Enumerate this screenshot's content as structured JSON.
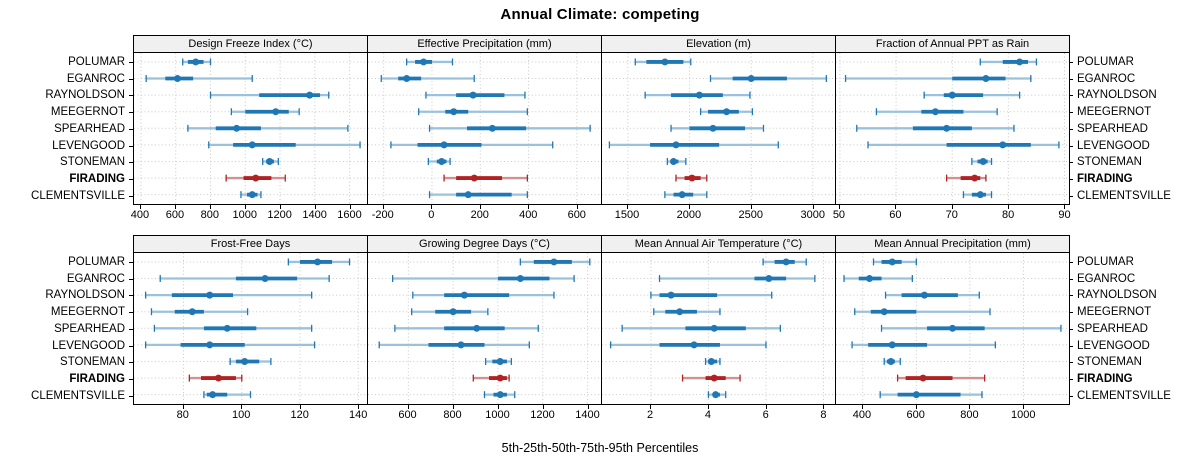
{
  "title": "Annual Climate: competing",
  "caption": "5th-25th-50th-75th-95th Percentiles",
  "percentile_scheme": [
    "5th",
    "25th",
    "50th",
    "75th",
    "95th"
  ],
  "sites": [
    "POLUMAR",
    "EGANROC",
    "RAYNOLDSON",
    "MEEGERNOT",
    "SPEARHEAD",
    "LEVENGOOD",
    "STONEMAN",
    "FIRADING",
    "CLEMENTSVILLE"
  ],
  "highlight_site": "FIRADING",
  "colors": {
    "series": "#1F77B4",
    "series_light": "#9AC2DD",
    "highlight": "#B22222",
    "highlight_light": "#D49090",
    "grid": "#C8C8C8",
    "strip_bg": "#F0F0F0",
    "border": "#000000"
  },
  "chart_data": {
    "type": "dotplot-percentile",
    "layout": {
      "rows": 2,
      "cols": 4,
      "grid": "dotted",
      "legend_position": "none",
      "axis_position": "below-each-row"
    },
    "categories": [
      "POLUMAR",
      "EGANROC",
      "RAYNOLDSON",
      "MEEGERNOT",
      "SPEARHEAD",
      "LEVENGOOD",
      "STONEMAN",
      "FIRADING",
      "CLEMENTSVILLE"
    ],
    "panels": [
      {
        "title": "Design Freeze Index (°C)",
        "ticks": [
          400,
          600,
          800,
          1000,
          1200,
          1400,
          1600
        ],
        "domain": [
          360,
          1700
        ],
        "values": [
          [
            640,
            670,
            715,
            760,
            800
          ],
          [
            430,
            540,
            610,
            700,
            1040
          ],
          [
            800,
            1080,
            1370,
            1430,
            1480
          ],
          [
            920,
            1000,
            1175,
            1250,
            1310
          ],
          [
            670,
            830,
            950,
            1090,
            1590
          ],
          [
            790,
            930,
            1040,
            1290,
            1660
          ],
          [
            1100,
            1120,
            1140,
            1165,
            1190
          ],
          [
            890,
            990,
            1060,
            1150,
            1230
          ],
          [
            975,
            1010,
            1040,
            1070,
            1090
          ]
        ]
      },
      {
        "title": "Effective Precipitation (mm)",
        "ticks": [
          -200,
          0,
          200,
          400,
          600
        ],
        "domain": [
          -265,
          700
        ],
        "values": [
          [
            -105,
            -70,
            -35,
            0,
            85
          ],
          [
            -210,
            -140,
            -105,
            -45,
            175
          ],
          [
            -25,
            100,
            170,
            300,
            385
          ],
          [
            -55,
            55,
            90,
            150,
            395
          ],
          [
            -10,
            145,
            250,
            390,
            655
          ],
          [
            -170,
            -60,
            50,
            205,
            500
          ],
          [
            -15,
            20,
            40,
            60,
            75
          ],
          [
            50,
            100,
            175,
            290,
            395
          ],
          [
            -10,
            100,
            150,
            330,
            395
          ]
        ]
      },
      {
        "title": "Elevation (m)",
        "ticks": [
          1500,
          2000,
          2500,
          3000
        ],
        "domain": [
          1290,
          3180
        ],
        "values": [
          [
            1560,
            1650,
            1800,
            1950,
            2010
          ],
          [
            2170,
            2350,
            2500,
            2790,
            3110
          ],
          [
            1640,
            1850,
            2080,
            2270,
            2490
          ],
          [
            2090,
            2150,
            2300,
            2400,
            2510
          ],
          [
            1850,
            2000,
            2190,
            2450,
            2600
          ],
          [
            1350,
            1680,
            1890,
            2240,
            2720
          ],
          [
            1820,
            1845,
            1870,
            1910,
            1970
          ],
          [
            1890,
            1960,
            2020,
            2090,
            2140
          ],
          [
            1800,
            1870,
            1940,
            2030,
            2140
          ]
        ]
      },
      {
        "title": "Fraction of Annual PPT as Rain",
        "ticks": [
          50,
          60,
          70,
          80,
          90
        ],
        "domain": [
          49.3,
          90.8
        ],
        "values": [
          [
            75,
            79,
            82,
            83.5,
            85
          ],
          [
            51,
            70,
            76,
            79.5,
            84
          ],
          [
            65,
            68.5,
            70,
            75.5,
            82
          ],
          [
            56.5,
            64.5,
            67,
            72,
            78
          ],
          [
            53,
            63,
            69,
            73.5,
            81
          ],
          [
            55,
            69,
            79,
            84,
            89
          ],
          [
            73.5,
            74.5,
            75.5,
            76.3,
            77
          ],
          [
            69,
            71.5,
            74,
            75,
            76
          ],
          [
            72,
            73.5,
            75,
            76,
            77
          ]
        ]
      },
      {
        "title": "Frost-Free Days",
        "ticks": [
          80,
          100,
          120,
          140
        ],
        "domain": [
          63,
          143
        ],
        "values": [
          [
            116,
            120,
            126,
            131,
            137
          ],
          [
            72,
            98,
            108,
            119,
            130
          ],
          [
            67,
            76,
            89,
            97,
            124
          ],
          [
            69,
            77,
            83,
            87,
            102
          ],
          [
            70,
            87,
            95,
            105,
            124
          ],
          [
            67,
            79,
            89,
            101,
            125
          ],
          [
            96,
            98,
            101,
            106,
            110
          ],
          [
            82,
            86,
            92,
            98,
            100
          ],
          [
            87,
            88,
            90,
            95,
            103
          ]
        ]
      },
      {
        "title": "Growing Degree Days (°C)",
        "ticks": [
          600,
          800,
          1000,
          1200,
          1400
        ],
        "domain": [
          420,
          1460
        ],
        "values": [
          [
            1100,
            1160,
            1250,
            1330,
            1410
          ],
          [
            530,
            1000,
            1100,
            1230,
            1340
          ],
          [
            620,
            760,
            850,
            1050,
            1250
          ],
          [
            615,
            720,
            800,
            880,
            955
          ],
          [
            540,
            760,
            905,
            1030,
            1180
          ],
          [
            470,
            690,
            835,
            940,
            1140
          ],
          [
            945,
            975,
            1010,
            1040,
            1060
          ],
          [
            890,
            960,
            1010,
            1040,
            1050
          ],
          [
            940,
            980,
            1010,
            1040,
            1075
          ]
        ]
      },
      {
        "title": "Mean Annual Air Temperature (°C)",
        "ticks": [
          2,
          4,
          6,
          8
        ],
        "domain": [
          0.3,
          8.4
        ],
        "values": [
          [
            5.9,
            6.3,
            6.7,
            7.0,
            7.4
          ],
          [
            2.3,
            5.6,
            6.1,
            6.7,
            7.7
          ],
          [
            2.0,
            2.3,
            2.7,
            4.3,
            6.2
          ],
          [
            2.1,
            2.5,
            3.0,
            3.6,
            4.4
          ],
          [
            1.0,
            3.2,
            4.2,
            5.3,
            6.5
          ],
          [
            0.6,
            2.3,
            3.5,
            4.4,
            6.0
          ],
          [
            3.9,
            4.0,
            4.1,
            4.3,
            4.4
          ],
          [
            3.1,
            3.9,
            4.2,
            4.6,
            5.1
          ],
          [
            4.0,
            4.15,
            4.25,
            4.4,
            4.6
          ]
        ]
      },
      {
        "title": "Mean Annual Precipitation (mm)",
        "ticks": [
          400,
          600,
          800,
          1000
        ],
        "domain": [
          300,
          1170
        ],
        "values": [
          [
            440,
            470,
            510,
            545,
            600
          ],
          [
            330,
            385,
            425,
            470,
            585
          ],
          [
            485,
            545,
            630,
            755,
            835
          ],
          [
            370,
            430,
            480,
            600,
            875
          ],
          [
            470,
            640,
            735,
            855,
            1140
          ],
          [
            360,
            420,
            510,
            640,
            895
          ],
          [
            480,
            490,
            505,
            520,
            540
          ],
          [
            530,
            560,
            625,
            735,
            855
          ],
          [
            465,
            530,
            600,
            765,
            845
          ]
        ]
      }
    ]
  }
}
